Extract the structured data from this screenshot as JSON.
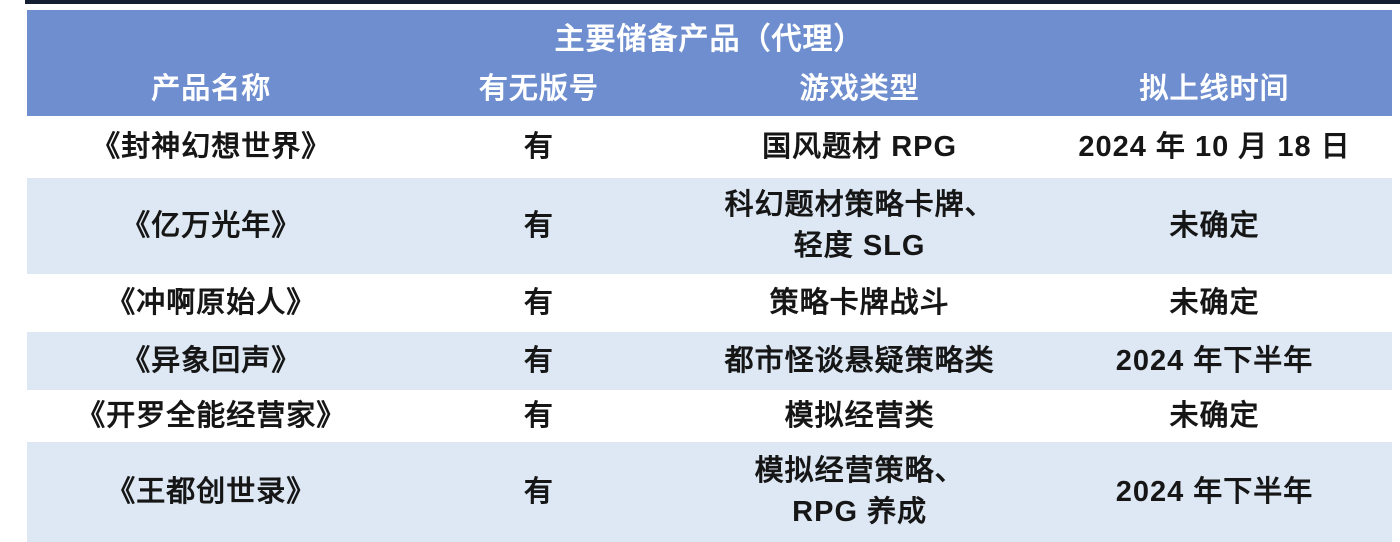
{
  "chart_data": {
    "type": "table",
    "title": "主要储备产品（代理）",
    "columns": [
      "产品名称",
      "有无版号",
      "游戏类型",
      "拟上线时间"
    ],
    "rows": [
      [
        "《封神幻想世界》",
        "有",
        "国风题材 RPG",
        "2024 年 10 月 18 日"
      ],
      [
        "《亿万光年》",
        "有",
        "科幻题材策略卡牌、\n轻度 SLG",
        "未确定"
      ],
      [
        "《冲啊原始人》",
        "有",
        "策略卡牌战斗",
        "未确定"
      ],
      [
        "《异象回声》",
        "有",
        "都市怪谈悬疑策略类",
        "2024 年下半年"
      ],
      [
        "《开罗全能经营家》",
        "有",
        "模拟经营类",
        "未确定"
      ],
      [
        "《王都创世录》",
        "有",
        "模拟经营策略、\nRPG 养成",
        "2024 年下半年"
      ]
    ],
    "layout": {
      "header_position": "top",
      "striped": true,
      "stripe_pattern": "rows 2, 4, 6 shaded"
    },
    "colors": {
      "header_bg": "#6E8ECF",
      "stripe_bg": "#DDE8F4",
      "header_text": "#FFFFFF",
      "body_text": "#161616",
      "top_border": "#141E33"
    }
  }
}
